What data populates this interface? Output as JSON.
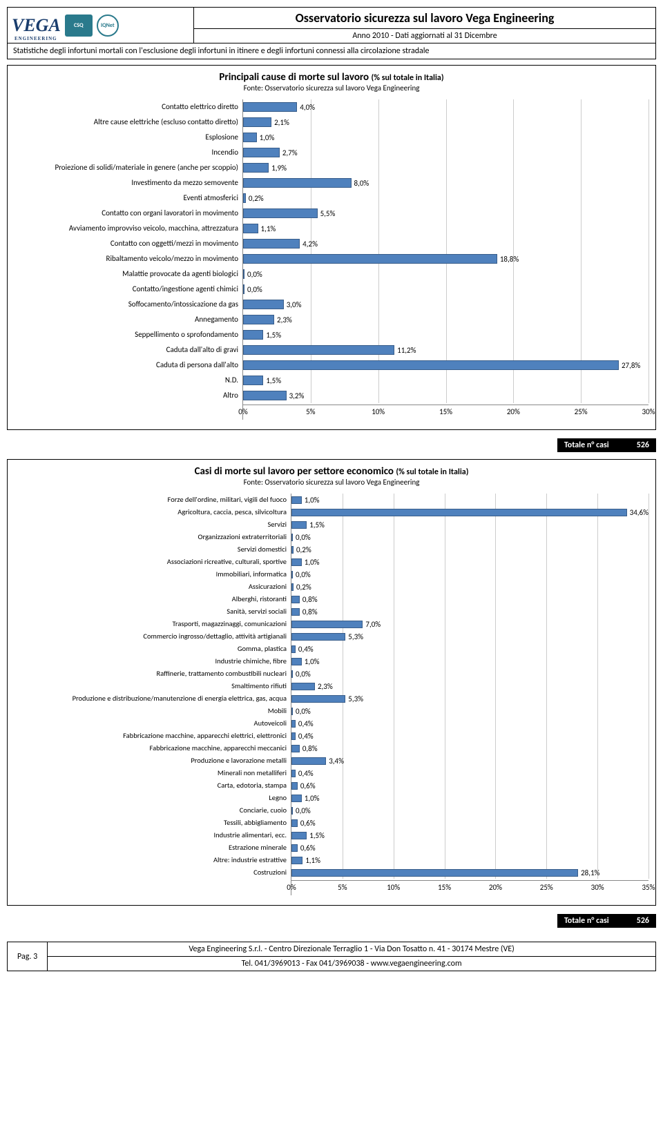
{
  "header": {
    "title": "Osservatorio sicurezza sul lavoro Vega Engineering",
    "subtitle": "Anno 2010 - Dati aggiornati al 31 Dicembre",
    "note": "Statistiche degli infortuni mortali con l'esclusione degli infortuni in itinere e degli infortuni connessi alla circolazione stradale",
    "logo": "VEGA",
    "badge1": "CSQ",
    "badge2": "IQNet"
  },
  "chart1": {
    "title": "Principali cause di morte sul lavoro ",
    "title_small": "(% sul totale in Italia)",
    "source": "Fonte: Osservatorio sicurezza sul lavoro Vega Engineering",
    "type": "horizontal_bar",
    "bar_color": "#4f81bd",
    "bar_border": "#385d8a",
    "grid_color": "#cccccc",
    "bg": "#ffffff",
    "label_fontsize": 11,
    "value_fontsize": 11,
    "xmin": 0,
    "xmax": 30,
    "xticks": [
      0,
      5,
      10,
      15,
      20,
      25,
      30
    ],
    "xtick_labels": [
      "0%",
      "5%",
      "10%",
      "15%",
      "20%",
      "25%",
      "30%"
    ],
    "rows": [
      {
        "label": "Contatto elettrico diretto",
        "v": 4.0,
        "t": "4,0%"
      },
      {
        "label": "Altre cause elettriche (escluso contatto diretto)",
        "v": 2.1,
        "t": "2,1%"
      },
      {
        "label": "Esplosione",
        "v": 1.0,
        "t": "1,0%"
      },
      {
        "label": "Incendio",
        "v": 2.7,
        "t": "2,7%"
      },
      {
        "label": "Proiezione di solidi/materiale in genere (anche per scoppio)",
        "v": 1.9,
        "t": "1,9%"
      },
      {
        "label": "Investimento da mezzo semovente",
        "v": 8.0,
        "t": "8,0%"
      },
      {
        "label": "Eventi atmosferici",
        "v": 0.2,
        "t": "0,2%"
      },
      {
        "label": "Contatto con organi lavoratori in movimento",
        "v": 5.5,
        "t": "5,5%"
      },
      {
        "label": "Avviamento improvviso veicolo, macchina, attrezzatura",
        "v": 1.1,
        "t": "1,1%"
      },
      {
        "label": "Contatto con oggetti/mezzi in movimento",
        "v": 4.2,
        "t": "4,2%"
      },
      {
        "label": "Ribaltamento veicolo/mezzo in movimento",
        "v": 18.8,
        "t": "18,8%"
      },
      {
        "label": "Malattie provocate da agenti biologici",
        "v": 0.0,
        "t": "0,0%"
      },
      {
        "label": "Contatto/ingestione agenti chimici",
        "v": 0.0,
        "t": "0,0%"
      },
      {
        "label": "Soffocamento/intossicazione da gas",
        "v": 3.0,
        "t": "3,0%"
      },
      {
        "label": "Annegamento",
        "v": 2.3,
        "t": "2,3%"
      },
      {
        "label": "Seppellimento o sprofondamento",
        "v": 1.5,
        "t": "1,5%"
      },
      {
        "label": "Caduta dall'alto di gravi",
        "v": 11.2,
        "t": "11,2%"
      },
      {
        "label": "Caduta di persona dall'alto",
        "v": 27.8,
        "t": "27,8%"
      },
      {
        "label": "N.D.",
        "v": 1.5,
        "t": "1,5%"
      },
      {
        "label": "Altro",
        "v": 3.2,
        "t": "3,2%"
      }
    ]
  },
  "total": {
    "label": "Totale n° casi",
    "value": "526"
  },
  "chart2": {
    "title": "Casi di morte sul lavoro per settore economico ",
    "title_small": "(% sul totale in Italia)",
    "source": "Fonte: Osservatorio sicurezza sul lavoro Vega Engineering",
    "type": "horizontal_bar",
    "bar_color": "#4f81bd",
    "bar_border": "#385d8a",
    "grid_color": "#cccccc",
    "bg": "#ffffff",
    "label_fontsize": 10.5,
    "value_fontsize": 11,
    "xmin": 0,
    "xmax": 35,
    "xticks": [
      0,
      5,
      10,
      15,
      20,
      25,
      30,
      35
    ],
    "xtick_labels": [
      "0%",
      "5%",
      "10%",
      "15%",
      "20%",
      "25%",
      "30%",
      "35%"
    ],
    "rows": [
      {
        "label": "Forze dell'ordine, militari, vigili del fuoco",
        "v": 1.0,
        "t": "1,0%"
      },
      {
        "label": "Agricoltura, caccia, pesca, silvicoltura",
        "v": 34.6,
        "t": "34,6%"
      },
      {
        "label": "Servizi",
        "v": 1.5,
        "t": "1,5%"
      },
      {
        "label": "Organizzazioni extraterritoriali",
        "v": 0.0,
        "t": "0,0%"
      },
      {
        "label": "Servizi domestici",
        "v": 0.2,
        "t": "0,2%"
      },
      {
        "label": "Associazioni ricreative, culturali, sportive",
        "v": 1.0,
        "t": "1,0%"
      },
      {
        "label": "Immobiliari, informatica",
        "v": 0.0,
        "t": "0,0%"
      },
      {
        "label": "Assicurazioni",
        "v": 0.2,
        "t": "0,2%"
      },
      {
        "label": "Alberghi, ristoranti",
        "v": 0.8,
        "t": "0,8%"
      },
      {
        "label": "Sanità, servizi sociali",
        "v": 0.8,
        "t": "0,8%"
      },
      {
        "label": "Trasporti, magazzinaggi, comunicazioni",
        "v": 7.0,
        "t": "7,0%"
      },
      {
        "label": "Commercio ingrosso/dettaglio, attività artigianali",
        "v": 5.3,
        "t": "5,3%"
      },
      {
        "label": "Gomma, plastica",
        "v": 0.4,
        "t": "0,4%"
      },
      {
        "label": "Industrie chimiche, fibre",
        "v": 1.0,
        "t": "1,0%"
      },
      {
        "label": "Raffinerie, trattamento combustibili nucleari",
        "v": 0.0,
        "t": "0,0%"
      },
      {
        "label": "Smaltimento rifiuti",
        "v": 2.3,
        "t": "2,3%"
      },
      {
        "label": "Produzione e distribuzione/manutenzione di energia elettrica, gas, acqua",
        "v": 5.3,
        "t": "5,3%"
      },
      {
        "label": "Mobili",
        "v": 0.0,
        "t": "0,0%"
      },
      {
        "label": "Autoveicoli",
        "v": 0.4,
        "t": "0,4%"
      },
      {
        "label": "Fabbricazione macchine, apparecchi elettrici, elettronici",
        "v": 0.4,
        "t": "0,4%"
      },
      {
        "label": "Fabbricazione macchine, apparecchi meccanici",
        "v": 0.8,
        "t": "0,8%"
      },
      {
        "label": "Produzione e lavorazione metalli",
        "v": 3.4,
        "t": "3,4%"
      },
      {
        "label": "Minerali non metalliferi",
        "v": 0.4,
        "t": "0,4%"
      },
      {
        "label": "Carta, edotoria, stampa",
        "v": 0.6,
        "t": "0,6%"
      },
      {
        "label": "Legno",
        "v": 1.0,
        "t": "1,0%"
      },
      {
        "label": "Conciarie, cuoio",
        "v": 0.0,
        "t": "0,0%"
      },
      {
        "label": "Tessili, abbigliamento",
        "v": 0.6,
        "t": "0,6%"
      },
      {
        "label": "Industrie alimentari, ecc.",
        "v": 1.5,
        "t": "1,5%"
      },
      {
        "label": "Estrazione minerale",
        "v": 0.6,
        "t": "0,6%"
      },
      {
        "label": "Altre: industrie estrattive",
        "v": 1.1,
        "t": "1,1%"
      },
      {
        "label": "Costruzioni",
        "v": 28.1,
        "t": "28,1%"
      }
    ]
  },
  "footer": {
    "page": "Pag. 3",
    "line1": "Vega Engineering S.r.l. - Centro Direzionale Terraglio 1 - Via Don Tosatto n. 41 - 30174 Mestre (VE)",
    "line2": "Tel. 041/3969013 - Fax 041/3969038 - www.vegaengineering.com"
  }
}
